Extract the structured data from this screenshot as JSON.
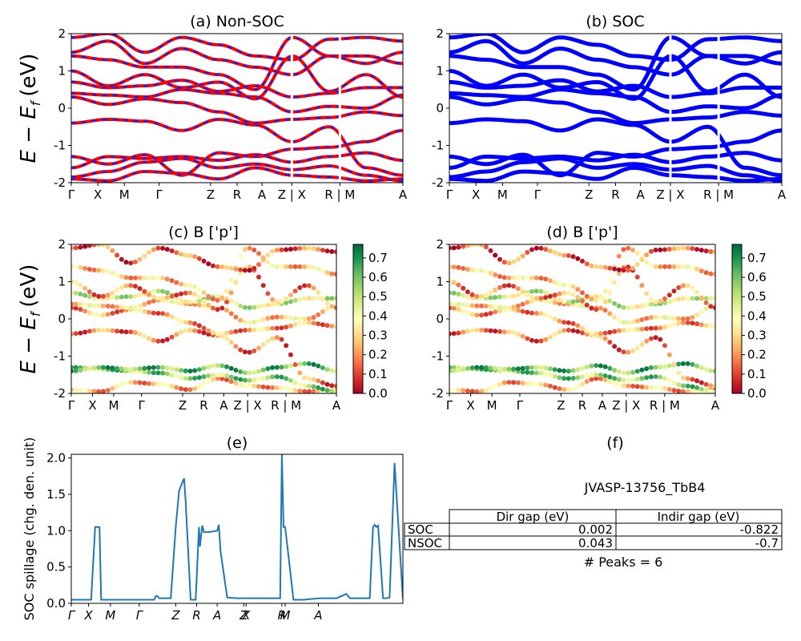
{
  "figure": {
    "ylabel_row1": "E − E",
    "ylabel_row2": "E − E",
    "ylabel_sub": "f",
    "ylabel_unit": "(eV)",
    "colors": {
      "nonsoc_red": "#ff0000",
      "nonsoc_blue": "#2222dd",
      "soc_blue": "#0000ff",
      "spillage_line": "#1f77b4"
    }
  },
  "chart_data": [
    {
      "type": "line",
      "title": "(a) Non-SOC",
      "ylim": [
        -2,
        2
      ],
      "yticks": [
        "-2",
        "-1",
        "0",
        "1",
        "2"
      ],
      "kpath_labels": [
        "Γ",
        "X",
        "M",
        "Γ",
        "Z",
        "R",
        "A",
        "Z | X",
        "R | M",
        "A"
      ],
      "kpath_positions": [
        0,
        0.08,
        0.16,
        0.265,
        0.42,
        0.5,
        0.575,
        0.665,
        0.81,
        1.0
      ],
      "series_style": "red line with blue dashes",
      "bands": [
        [
          -1.9,
          -1.95,
          -1.7,
          -1.75,
          -1.9,
          -1.6,
          -1.8,
          -1.85,
          -1.95,
          -1.9
        ],
        [
          -1.85,
          -1.7,
          -1.45,
          -1.35,
          -1.6,
          -1.5,
          -1.65,
          -1.55,
          -1.8,
          -1.95
        ],
        [
          -1.6,
          -1.3,
          -1.35,
          -1.3,
          -1.4,
          -1.25,
          -1.45,
          -1.3,
          -1.2,
          -1.4
        ],
        [
          -1.3,
          -1.5,
          -1.25,
          -1.8,
          -1.2,
          -1.3,
          -1.1,
          -1.05,
          -0.9,
          -0.6
        ],
        [
          -0.4,
          -0.3,
          -0.35,
          -0.6,
          -0.3,
          -0.45,
          -0.9,
          -0.5,
          -1.6,
          -1.8
        ],
        [
          0.3,
          0.1,
          0.25,
          0.15,
          -0.1,
          -0.4,
          -0.3,
          -0.25,
          -0.1,
          -0.2
        ],
        [
          0.4,
          0.35,
          0.3,
          0.5,
          0.4,
          0.3,
          -0.1,
          0.05,
          0.0,
          0.35
        ],
        [
          0.7,
          0.55,
          0.6,
          0.75,
          0.45,
          0.6,
          0.3,
          0.4,
          0.55,
          0.55
        ],
        [
          1.0,
          0.6,
          0.9,
          0.55,
          0.7,
          0.25,
          1.4,
          0.45,
          0.9,
          0.3
        ],
        [
          1.4,
          1.3,
          1.1,
          1.1,
          0.9,
          0.5,
          1.9,
          1.4,
          1.4,
          1.2
        ],
        [
          1.5,
          1.8,
          1.2,
          1.6,
          1.3,
          1.1,
          0.9,
          1.4,
          1.2,
          1.5
        ],
        [
          1.9,
          2.0,
          1.5,
          1.9,
          1.7,
          1.4,
          1.3,
          1.85,
          1.9,
          1.8
        ]
      ]
    },
    {
      "type": "line",
      "title": "(b) SOC",
      "ylim": [
        -2,
        2
      ],
      "yticks": [
        "-2",
        "-1",
        "0",
        "1",
        "2"
      ],
      "kpath_labels": [
        "Γ",
        "X",
        "M",
        "Γ",
        "Z",
        "R",
        "A",
        "Z | X",
        "R | M",
        "A"
      ],
      "kpath_positions": [
        0,
        0.08,
        0.16,
        0.265,
        0.42,
        0.5,
        0.575,
        0.665,
        0.81,
        1.0
      ],
      "series_style": "blue thick lines",
      "bands": [
        [
          -1.9,
          -1.95,
          -1.7,
          -1.75,
          -1.9,
          -1.6,
          -1.8,
          -1.85,
          -1.95,
          -1.9
        ],
        [
          -1.85,
          -1.7,
          -1.45,
          -1.35,
          -1.6,
          -1.5,
          -1.65,
          -1.55,
          -1.8,
          -1.95
        ],
        [
          -1.6,
          -1.3,
          -1.35,
          -1.3,
          -1.4,
          -1.25,
          -1.45,
          -1.3,
          -1.2,
          -1.4
        ],
        [
          -1.3,
          -1.5,
          -1.25,
          -1.8,
          -1.2,
          -1.3,
          -1.1,
          -1.05,
          -0.9,
          -0.6
        ],
        [
          -0.4,
          -0.3,
          -0.35,
          -0.6,
          -0.3,
          -0.45,
          -0.9,
          -0.5,
          -1.6,
          -1.8
        ],
        [
          0.3,
          0.1,
          0.25,
          0.15,
          -0.1,
          -0.4,
          -0.3,
          -0.25,
          -0.1,
          -0.2
        ],
        [
          0.4,
          0.35,
          0.3,
          0.5,
          0.4,
          0.3,
          -0.1,
          0.05,
          0.0,
          0.35
        ],
        [
          0.7,
          0.55,
          0.6,
          0.75,
          0.45,
          0.6,
          0.3,
          0.4,
          0.55,
          0.55
        ],
        [
          1.0,
          0.6,
          0.9,
          0.55,
          0.7,
          0.25,
          1.4,
          0.45,
          0.9,
          0.3
        ],
        [
          1.4,
          1.3,
          1.1,
          1.1,
          0.9,
          0.5,
          1.9,
          1.4,
          1.4,
          1.2
        ],
        [
          1.5,
          1.8,
          1.2,
          1.6,
          1.3,
          1.1,
          0.9,
          1.4,
          1.2,
          1.5
        ],
        [
          1.9,
          2.0,
          1.5,
          1.9,
          1.7,
          1.4,
          1.3,
          1.85,
          1.9,
          1.8
        ]
      ]
    },
    {
      "type": "scatter",
      "title": "(c)  B ['p']",
      "ylim": [
        -2,
        2
      ],
      "yticks": [
        "-2",
        "-1",
        "0",
        "1",
        "2"
      ],
      "kpath_labels": [
        "Γ",
        "X",
        "M",
        "Γ",
        "Z",
        "R",
        "A",
        "Z | X",
        "R | M",
        "A"
      ],
      "kpath_positions": [
        0,
        0.08,
        0.16,
        0.265,
        0.42,
        0.5,
        0.575,
        0.665,
        0.81,
        1.0
      ],
      "colorbar": {
        "min": 0.0,
        "max": 0.77,
        "ticks": [
          "0.0",
          "0.1",
          "0.2",
          "0.3",
          "0.4",
          "0.5",
          "0.6",
          "0.7"
        ],
        "colormap": "RdYlGn"
      },
      "bands": [
        [
          -1.9,
          -1.95,
          -1.7,
          -1.75,
          -1.9,
          -1.6,
          -1.8,
          -1.85,
          -1.95,
          -1.9
        ],
        [
          -1.3,
          -1.35,
          -1.4,
          -1.45,
          -1.6,
          -1.5,
          -1.65,
          -1.55,
          -1.8,
          -1.95
        ],
        [
          -1.4,
          -1.3,
          -1.35,
          -1.3,
          -1.4,
          -1.25,
          -1.45,
          -1.3,
          -1.2,
          -1.4
        ],
        [
          -0.4,
          -0.3,
          -0.35,
          -0.6,
          -0.3,
          -0.45,
          -0.9,
          -0.5,
          -1.6,
          -1.8
        ],
        [
          0.3,
          0.1,
          0.25,
          0.15,
          -0.1,
          -0.4,
          -0.3,
          -0.25,
          -0.1,
          -0.2
        ],
        [
          0.4,
          0.35,
          0.3,
          0.5,
          0.4,
          0.3,
          -0.1,
          0.05,
          0.0,
          0.35
        ],
        [
          0.7,
          0.55,
          0.6,
          0.75,
          0.45,
          0.6,
          0.3,
          0.4,
          0.55,
          0.55
        ],
        [
          1.0,
          0.6,
          0.9,
          0.55,
          0.7,
          0.25,
          1.4,
          0.45,
          0.9,
          0.3
        ],
        [
          1.4,
          1.3,
          1.1,
          1.1,
          0.9,
          0.5,
          1.9,
          1.4,
          1.4,
          1.2
        ],
        [
          1.9,
          2.0,
          1.5,
          1.9,
          1.7,
          1.4,
          1.3,
          1.85,
          1.9,
          1.8
        ]
      ],
      "band_weights": [
        0.25,
        0.55,
        0.6,
        0.18,
        0.22,
        0.3,
        0.45,
        0.2,
        0.28,
        0.15
      ]
    },
    {
      "type": "scatter",
      "title": "(d) B ['p']",
      "ylim": [
        -2,
        2
      ],
      "yticks": [
        "-2",
        "-1",
        "0",
        "1",
        "2"
      ],
      "kpath_labels": [
        "Γ",
        "X",
        "M",
        "Γ",
        "Z",
        "R",
        "A",
        "Z | X",
        "R | M",
        "A"
      ],
      "kpath_positions": [
        0,
        0.08,
        0.16,
        0.265,
        0.42,
        0.5,
        0.575,
        0.665,
        0.81,
        1.0
      ],
      "colorbar": {
        "min": 0.0,
        "max": 0.77,
        "ticks": [
          "0.0",
          "0.1",
          "0.2",
          "0.3",
          "0.4",
          "0.5",
          "0.6",
          "0.7"
        ],
        "colormap": "RdYlGn"
      },
      "bands": [
        [
          -1.9,
          -1.95,
          -1.7,
          -1.75,
          -1.9,
          -1.6,
          -1.8,
          -1.85,
          -1.95,
          -1.9
        ],
        [
          -1.3,
          -1.35,
          -1.4,
          -1.45,
          -1.6,
          -1.5,
          -1.65,
          -1.55,
          -1.8,
          -1.95
        ],
        [
          -1.4,
          -1.3,
          -1.35,
          -1.3,
          -1.4,
          -1.25,
          -1.45,
          -1.3,
          -1.2,
          -1.4
        ],
        [
          -0.4,
          -0.3,
          -0.35,
          -0.6,
          -0.3,
          -0.45,
          -0.9,
          -0.5,
          -1.6,
          -1.8
        ],
        [
          0.3,
          0.1,
          0.25,
          0.15,
          -0.1,
          -0.4,
          -0.3,
          -0.25,
          -0.1,
          -0.2
        ],
        [
          0.4,
          0.35,
          0.3,
          0.5,
          0.4,
          0.3,
          -0.1,
          0.05,
          0.0,
          0.35
        ],
        [
          0.7,
          0.55,
          0.6,
          0.75,
          0.45,
          0.6,
          0.3,
          0.4,
          0.55,
          0.55
        ],
        [
          1.0,
          0.6,
          0.9,
          0.55,
          0.7,
          0.25,
          1.4,
          0.45,
          0.9,
          0.3
        ],
        [
          1.4,
          1.3,
          1.1,
          1.1,
          0.9,
          0.5,
          1.9,
          1.4,
          1.4,
          1.2
        ],
        [
          1.9,
          2.0,
          1.5,
          1.9,
          1.7,
          1.4,
          1.3,
          1.85,
          1.9,
          1.8
        ]
      ],
      "band_weights": [
        0.25,
        0.55,
        0.6,
        0.18,
        0.22,
        0.3,
        0.45,
        0.2,
        0.28,
        0.15
      ]
    },
    {
      "type": "line",
      "title": "(e)",
      "ylabel": "SOC spillage (chg. den. unit)",
      "ylim": [
        0,
        2.05
      ],
      "yticks": [
        "0.0",
        "0.5",
        "1.0",
        "1.5",
        "2.0"
      ],
      "xtick_labels": [
        "Γ",
        "X",
        "M",
        "Γ",
        "Z",
        "R",
        "A",
        "Z",
        "X",
        "R",
        "M",
        "A"
      ],
      "xtick_positions": [
        0,
        0.052,
        0.118,
        0.205,
        0.315,
        0.378,
        0.44,
        0.52,
        0.527,
        0.635,
        0.645,
        0.745
      ],
      "x": [
        0,
        0.06,
        0.072,
        0.075,
        0.08,
        0.085,
        0.09,
        0.095,
        0.1,
        0.2,
        0.25,
        0.255,
        0.26,
        0.265,
        0.3,
        0.315,
        0.325,
        0.34,
        0.345,
        0.36,
        0.375,
        0.385,
        0.388,
        0.395,
        0.4,
        0.405,
        0.415,
        0.44,
        0.445,
        0.45,
        0.47,
        0.5,
        0.6,
        0.625,
        0.63,
        0.635,
        0.64,
        0.645,
        0.67,
        0.7,
        0.75,
        0.8,
        0.83,
        0.84,
        0.9,
        0.91,
        0.915,
        0.92,
        0.925,
        0.94,
        0.95,
        0.96,
        0.975,
        1.0
      ],
      "y": [
        0.05,
        0.05,
        1.05,
        1.05,
        1.05,
        1.05,
        0.05,
        0.05,
        0.05,
        0.05,
        0.05,
        0.1,
        0.1,
        0.07,
        0.07,
        1.05,
        1.55,
        1.72,
        1.4,
        0.05,
        0.05,
        1.05,
        0.78,
        1.07,
        0.98,
        0.98,
        0.98,
        1.0,
        1.08,
        0.72,
        0.08,
        0.07,
        0.07,
        0.07,
        0.07,
        2.05,
        1.05,
        1.05,
        0.05,
        0.05,
        0.07,
        0.07,
        0.13,
        0.07,
        0.07,
        1.05,
        1.08,
        1.05,
        1.07,
        0.07,
        0.07,
        0.08,
        1.93,
        0.06
      ]
    }
  ],
  "panel_f": {
    "title": "(f)",
    "material": "JVASP-13756_TbB4",
    "table": {
      "headers": [
        "",
        "Dir gap (eV)",
        "Indir gap (eV)"
      ],
      "rows": [
        [
          "SOC",
          "0.002",
          "-0.822"
        ],
        [
          "NSOC",
          "0.043",
          "-0.7"
        ]
      ]
    },
    "peaks": "# Peaks = 6"
  }
}
